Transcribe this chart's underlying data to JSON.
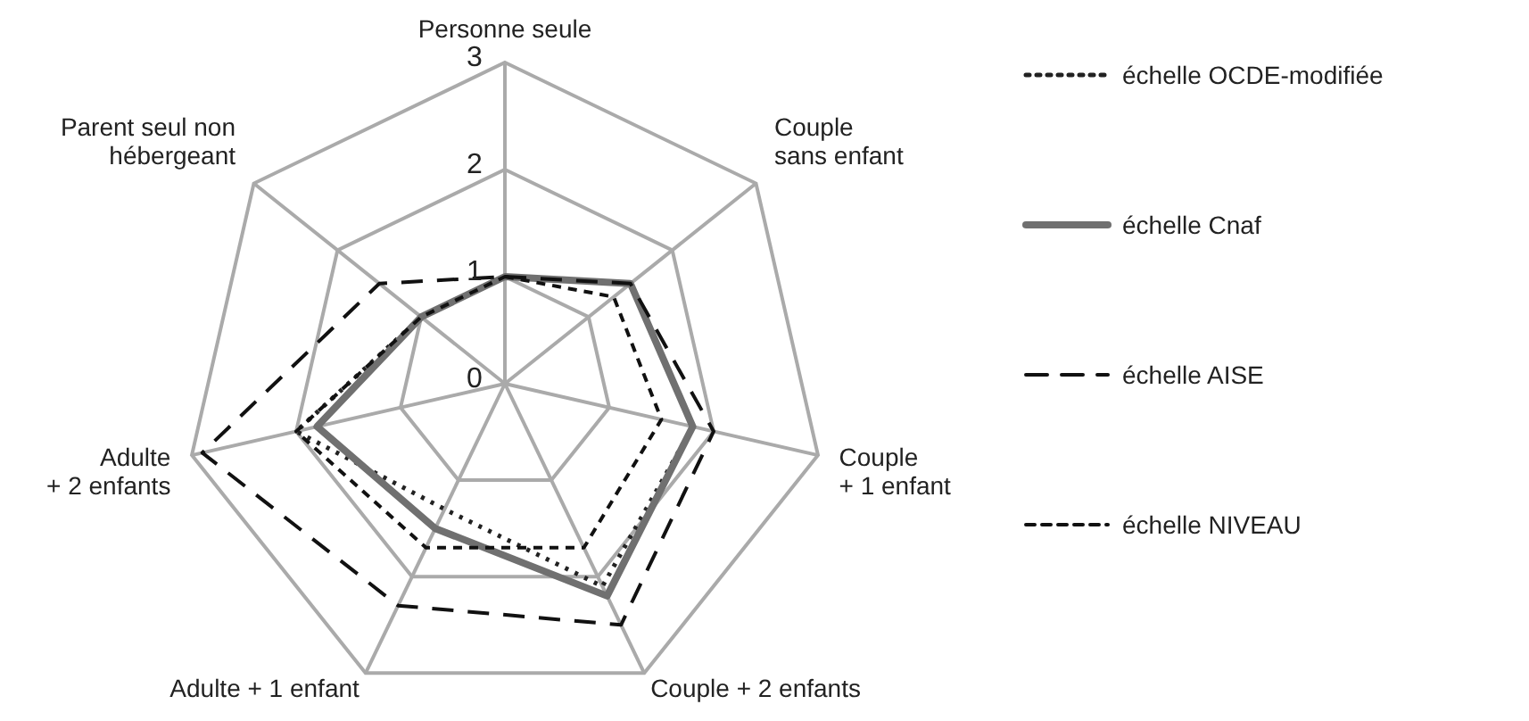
{
  "chart_data": {
    "type": "radar",
    "categories": [
      "Personne seule",
      "Couple\nsans enfant",
      "Couple\n+ 1 enfant",
      "Couple + 2 enfants",
      "Adulte + 1 enfant",
      "Adulte\n+ 2 enfants",
      "Parent seul non\nhébergeant"
    ],
    "series": [
      {
        "name": "échelle OCDE-modifiée",
        "color": "#222222",
        "line_style": "dotted",
        "values": [
          1,
          1.5,
          1.8,
          2.1,
          1.3,
          2.0,
          1.0
        ]
      },
      {
        "name": "échelle Cnaf",
        "color": "#707070",
        "line_style": "solid",
        "values": [
          1,
          1.5,
          1.8,
          2.2,
          1.5,
          1.8,
          1.0
        ]
      },
      {
        "name": "échelle AISE",
        "color": "#111111",
        "line_style": "dashed",
        "values": [
          1,
          1.5,
          2.0,
          2.5,
          2.3,
          2.9,
          1.5
        ]
      },
      {
        "name": "échelle NIVEAU",
        "color": "#111111",
        "line_style": "dashed",
        "values": [
          1,
          1.3,
          1.5,
          1.7,
          1.7,
          2.0,
          1.0
        ]
      }
    ],
    "ylim": [
      0,
      3
    ],
    "yticks": [
      0,
      1,
      2,
      3
    ],
    "grid": true,
    "legend": "right",
    "marker": "none"
  }
}
